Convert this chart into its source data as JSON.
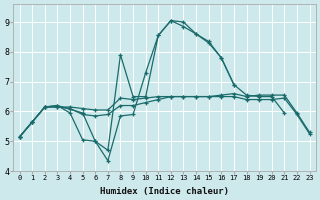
{
  "xlabel": "Humidex (Indice chaleur)",
  "xlim": [
    -0.5,
    23.5
  ],
  "ylim": [
    4.0,
    9.6
  ],
  "yticks": [
    4,
    5,
    6,
    7,
    8,
    9
  ],
  "xtick_labels": [
    "0",
    "1",
    "2",
    "3",
    "4",
    "5",
    "6",
    "7",
    "8",
    "9",
    "10",
    "11",
    "12",
    "13",
    "14",
    "15",
    "16",
    "17",
    "18",
    "19",
    "20",
    "21",
    "22",
    "23"
  ],
  "bg_color": "#cee9ec",
  "grid_color": "#ffffff",
  "line_color": "#1a6b6b",
  "lines": [
    {
      "x": [
        0,
        1,
        2,
        3,
        4,
        5,
        6,
        7,
        8,
        9,
        10,
        11,
        12,
        13,
        14,
        15,
        16,
        17,
        18,
        19,
        20,
        21,
        22,
        23
      ],
      "y": [
        5.15,
        5.65,
        6.15,
        6.15,
        6.15,
        6.1,
        6.05,
        6.05,
        6.45,
        6.4,
        6.45,
        6.5,
        6.5,
        6.5,
        6.5,
        6.5,
        6.55,
        6.6,
        6.5,
        6.55,
        6.55,
        6.55,
        5.95,
        5.3
      ]
    },
    {
      "x": [
        0,
        1,
        2,
        3,
        4,
        5,
        6,
        7,
        8,
        9,
        10,
        11,
        12,
        13,
        14,
        15,
        16,
        17,
        18,
        19,
        20,
        21,
        22,
        23
      ],
      "y": [
        5.15,
        5.65,
        6.15,
        6.15,
        6.1,
        5.9,
        5.85,
        5.9,
        6.2,
        6.2,
        6.3,
        6.4,
        6.5,
        6.5,
        6.5,
        6.5,
        6.5,
        6.5,
        6.4,
        6.4,
        6.4,
        6.45,
        5.9,
        5.25
      ]
    },
    {
      "x": [
        0,
        1,
        2,
        3,
        4,
        5,
        6,
        7,
        8,
        9,
        10,
        11,
        12,
        13,
        14,
        15,
        16,
        17,
        18,
        19,
        20,
        21
      ],
      "y": [
        5.15,
        5.65,
        6.15,
        6.2,
        5.95,
        5.05,
        5.0,
        4.35,
        5.85,
        5.9,
        7.3,
        8.55,
        9.05,
        9.0,
        8.6,
        8.35,
        7.8,
        6.9,
        6.55,
        6.5,
        6.5,
        5.95
      ]
    },
    {
      "x": [
        0,
        1,
        2,
        3,
        5,
        6,
        7,
        8,
        9,
        10,
        11,
        12,
        13,
        14,
        15,
        16,
        17
      ],
      "y": [
        5.15,
        5.65,
        6.15,
        6.2,
        5.95,
        5.0,
        4.7,
        7.9,
        6.5,
        6.5,
        8.55,
        9.05,
        8.85,
        8.6,
        8.3,
        7.8,
        6.9
      ]
    }
  ]
}
